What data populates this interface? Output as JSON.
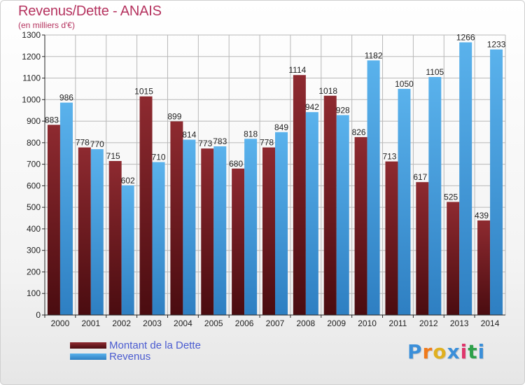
{
  "header": {
    "title": "Revenus/Dette - ANAIS",
    "subtitle": "(en milliers d'€)"
  },
  "brand": {
    "letters": [
      "P",
      "r",
      "o",
      "x",
      "i",
      "t",
      "i"
    ],
    "colors": [
      "#3b8fd9",
      "#f07a1a",
      "#e0b020",
      "#3b8fd9",
      "#e0356b",
      "#2ea04a",
      "#3b8fd9"
    ]
  },
  "colors": {
    "dette": "#7a1e26",
    "revenus": "#4aa3e3",
    "axis": "#222222",
    "grid": "#b8b8b8"
  },
  "legend": {
    "items": [
      {
        "label": "Montant de la Dette",
        "color": "#6a1a20"
      },
      {
        "label": "Revenus",
        "color": "#4aa3e3"
      }
    ]
  },
  "chart_data": {
    "type": "bar",
    "title": "Revenus/Dette - ANAIS",
    "subtitle": "(en milliers d'€)",
    "categories": [
      "2000",
      "2001",
      "2002",
      "2003",
      "2004",
      "2005",
      "2006",
      "2007",
      "2008",
      "2009",
      "2010",
      "2011",
      "2012",
      "2013",
      "2014"
    ],
    "series": [
      {
        "name": "Montant de la Dette",
        "values": [
          883,
          778,
          715,
          1015,
          899,
          773,
          680,
          778,
          1114,
          1018,
          826,
          713,
          617,
          525,
          439
        ]
      },
      {
        "name": "Revenus",
        "values": [
          986,
          770,
          602,
          710,
          814,
          783,
          818,
          849,
          942,
          928,
          1182,
          1050,
          1105,
          1266,
          1233
        ]
      }
    ],
    "ylim": [
      0,
      1300
    ],
    "yticks": [
      0,
      100,
      200,
      300,
      400,
      500,
      600,
      700,
      800,
      900,
      1000,
      1100,
      1200,
      1300
    ],
    "grid": true,
    "legend_position": "bottom-left"
  }
}
